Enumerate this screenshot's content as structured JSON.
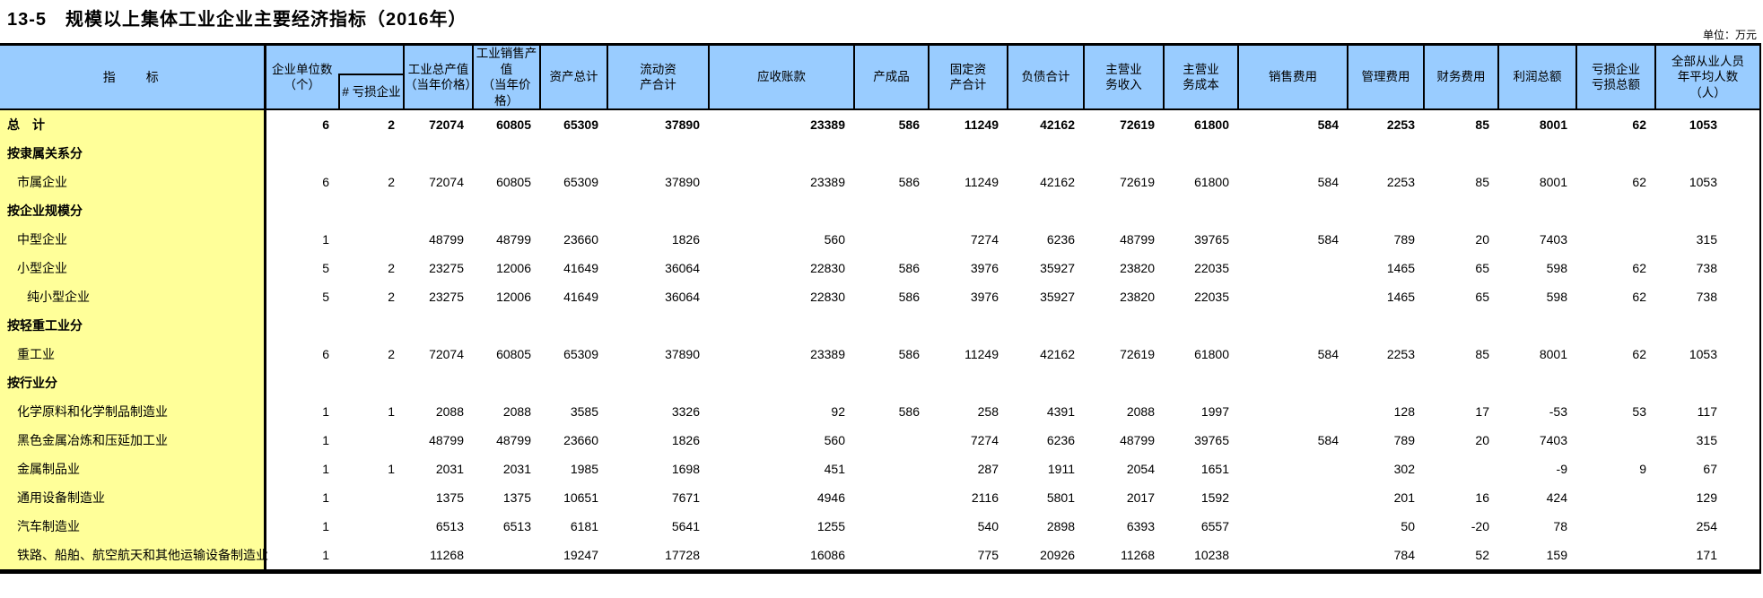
{
  "title": "13-5　规模以上集体工业企业主要经济指标（2016年）",
  "unit_note": "单位：万元",
  "colors": {
    "header_bg": "#99ccff",
    "label_col_bg": "#ffff99",
    "border": "#000000"
  },
  "table": {
    "header": [
      "指　　标",
      "企业单位数\n（个）",
      "# 亏损企业",
      "工业总产值\n（当年价格）",
      "工业销售产值\n（当年价格）",
      "资产总计",
      "流动资\n产合计",
      "应收账款",
      "产成品",
      "固定资\n产合计",
      "负债合计",
      "主营业\n务收入",
      "主营业\n务成本",
      "销售费用",
      "管理费用",
      "财务费用",
      "利润总额",
      "亏损企业\n亏损总额",
      "全部从业人员\n年平均人数\n（人）"
    ],
    "rows": [
      {
        "label": "总　计",
        "indent": 0,
        "bold": true,
        "values": [
          "6",
          "2",
          "72074",
          "60805",
          "65309",
          "37890",
          "23389",
          "586",
          "11249",
          "42162",
          "72619",
          "61800",
          "584",
          "2253",
          "85",
          "8001",
          "62",
          "1053"
        ]
      },
      {
        "label": "按隶属关系分",
        "indent": 0,
        "bold": true,
        "values": [
          "",
          "",
          "",
          "",
          "",
          "",
          "",
          "",
          "",
          "",
          "",
          "",
          "",
          "",
          "",
          "",
          "",
          ""
        ]
      },
      {
        "label": "市属企业",
        "indent": 1,
        "bold": false,
        "values": [
          "6",
          "2",
          "72074",
          "60805",
          "65309",
          "37890",
          "23389",
          "586",
          "11249",
          "42162",
          "72619",
          "61800",
          "584",
          "2253",
          "85",
          "8001",
          "62",
          "1053"
        ]
      },
      {
        "label": "按企业规模分",
        "indent": 0,
        "bold": true,
        "values": [
          "",
          "",
          "",
          "",
          "",
          "",
          "",
          "",
          "",
          "",
          "",
          "",
          "",
          "",
          "",
          "",
          "",
          ""
        ]
      },
      {
        "label": "中型企业",
        "indent": 1,
        "bold": false,
        "values": [
          "1",
          "",
          "48799",
          "48799",
          "23660",
          "1826",
          "560",
          "",
          "7274",
          "6236",
          "48799",
          "39765",
          "584",
          "789",
          "20",
          "7403",
          "",
          "315"
        ]
      },
      {
        "label": "小型企业",
        "indent": 1,
        "bold": false,
        "values": [
          "5",
          "2",
          "23275",
          "12006",
          "41649",
          "36064",
          "22830",
          "586",
          "3976",
          "35927",
          "23820",
          "22035",
          "",
          "1465",
          "65",
          "598",
          "62",
          "738"
        ]
      },
      {
        "label": "纯小型企业",
        "indent": 2,
        "bold": false,
        "values": [
          "5",
          "2",
          "23275",
          "12006",
          "41649",
          "36064",
          "22830",
          "586",
          "3976",
          "35927",
          "23820",
          "22035",
          "",
          "1465",
          "65",
          "598",
          "62",
          "738"
        ]
      },
      {
        "label": "按轻重工业分",
        "indent": 0,
        "bold": true,
        "values": [
          "",
          "",
          "",
          "",
          "",
          "",
          "",
          "",
          "",
          "",
          "",
          "",
          "",
          "",
          "",
          "",
          "",
          ""
        ]
      },
      {
        "label": "重工业",
        "indent": 1,
        "bold": false,
        "values": [
          "6",
          "2",
          "72074",
          "60805",
          "65309",
          "37890",
          "23389",
          "586",
          "11249",
          "42162",
          "72619",
          "61800",
          "584",
          "2253",
          "85",
          "8001",
          "62",
          "1053"
        ]
      },
      {
        "label": "按行业分",
        "indent": 0,
        "bold": true,
        "values": [
          "",
          "",
          "",
          "",
          "",
          "",
          "",
          "",
          "",
          "",
          "",
          "",
          "",
          "",
          "",
          "",
          "",
          ""
        ]
      },
      {
        "label": "化学原料和化学制品制造业",
        "indent": 1,
        "bold": false,
        "values": [
          "1",
          "1",
          "2088",
          "2088",
          "3585",
          "3326",
          "92",
          "586",
          "258",
          "4391",
          "2088",
          "1997",
          "",
          "128",
          "17",
          "-53",
          "53",
          "117"
        ]
      },
      {
        "label": "黑色金属冶炼和压延加工业",
        "indent": 1,
        "bold": false,
        "values": [
          "1",
          "",
          "48799",
          "48799",
          "23660",
          "1826",
          "560",
          "",
          "7274",
          "6236",
          "48799",
          "39765",
          "584",
          "789",
          "20",
          "7403",
          "",
          "315"
        ]
      },
      {
        "label": "金属制品业",
        "indent": 1,
        "bold": false,
        "values": [
          "1",
          "1",
          "2031",
          "2031",
          "1985",
          "1698",
          "451",
          "",
          "287",
          "1911",
          "2054",
          "1651",
          "",
          "302",
          "",
          "-9",
          "9",
          "67"
        ]
      },
      {
        "label": "通用设备制造业",
        "indent": 1,
        "bold": false,
        "values": [
          "1",
          "",
          "1375",
          "1375",
          "10651",
          "7671",
          "4946",
          "",
          "2116",
          "5801",
          "2017",
          "1592",
          "",
          "201",
          "16",
          "424",
          "",
          "129"
        ]
      },
      {
        "label": "汽车制造业",
        "indent": 1,
        "bold": false,
        "values": [
          "1",
          "",
          "6513",
          "6513",
          "6181",
          "5641",
          "1255",
          "",
          "540",
          "2898",
          "6393",
          "6557",
          "",
          "50",
          "-20",
          "78",
          "",
          "254"
        ]
      },
      {
        "label": "铁路、船舶、航空航天和其他运输设备制造业",
        "indent": 1,
        "bold": false,
        "values": [
          "1",
          "",
          "11268",
          "",
          "19247",
          "17728",
          "16086",
          "",
          "775",
          "20926",
          "11268",
          "10238",
          "",
          "784",
          "52",
          "159",
          "",
          "171"
        ]
      }
    ]
  }
}
